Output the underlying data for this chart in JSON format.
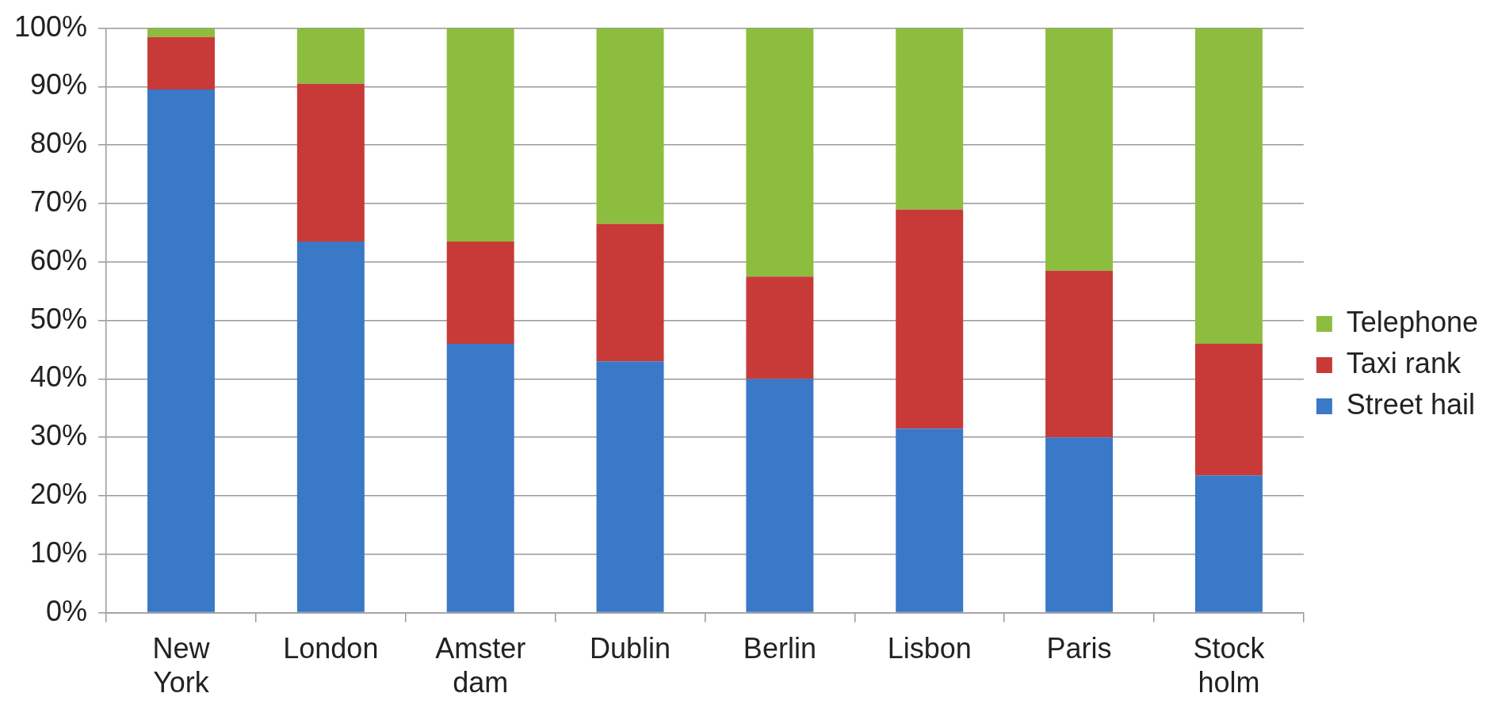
{
  "chart_data": {
    "type": "bar",
    "stacked": true,
    "categories": [
      "New York",
      "London",
      "Amster dam",
      "Dublin",
      "Berlin",
      "Lisbon",
      "Paris",
      "Stock holm"
    ],
    "series": [
      {
        "name": "Street hail",
        "color": "#3a78c8",
        "values": [
          89.5,
          63.5,
          46,
          43,
          40,
          31.5,
          30,
          23.5
        ]
      },
      {
        "name": "Taxi rank",
        "color": "#c83a38",
        "values": [
          9,
          27,
          17.5,
          23.5,
          17.5,
          37.5,
          28.5,
          22.5
        ]
      },
      {
        "name": "Telephone",
        "color": "#8dbd3e",
        "values": [
          1.5,
          9.5,
          36.5,
          33.5,
          42.5,
          31,
          41.5,
          54
        ]
      }
    ],
    "ylim": [
      0,
      100
    ],
    "yticks": [
      {
        "value": 0,
        "label": "0%"
      },
      {
        "value": 10,
        "label": "10%"
      },
      {
        "value": 20,
        "label": "20%"
      },
      {
        "value": 30,
        "label": "30%"
      },
      {
        "value": 40,
        "label": "40%"
      },
      {
        "value": 50,
        "label": "50%"
      },
      {
        "value": 60,
        "label": "60%"
      },
      {
        "value": 70,
        "label": "70%"
      },
      {
        "value": 80,
        "label": "80%"
      },
      {
        "value": 90,
        "label": "90%"
      },
      {
        "value": 100,
        "label": "100%"
      }
    ],
    "grid": "y",
    "legend": "right"
  }
}
